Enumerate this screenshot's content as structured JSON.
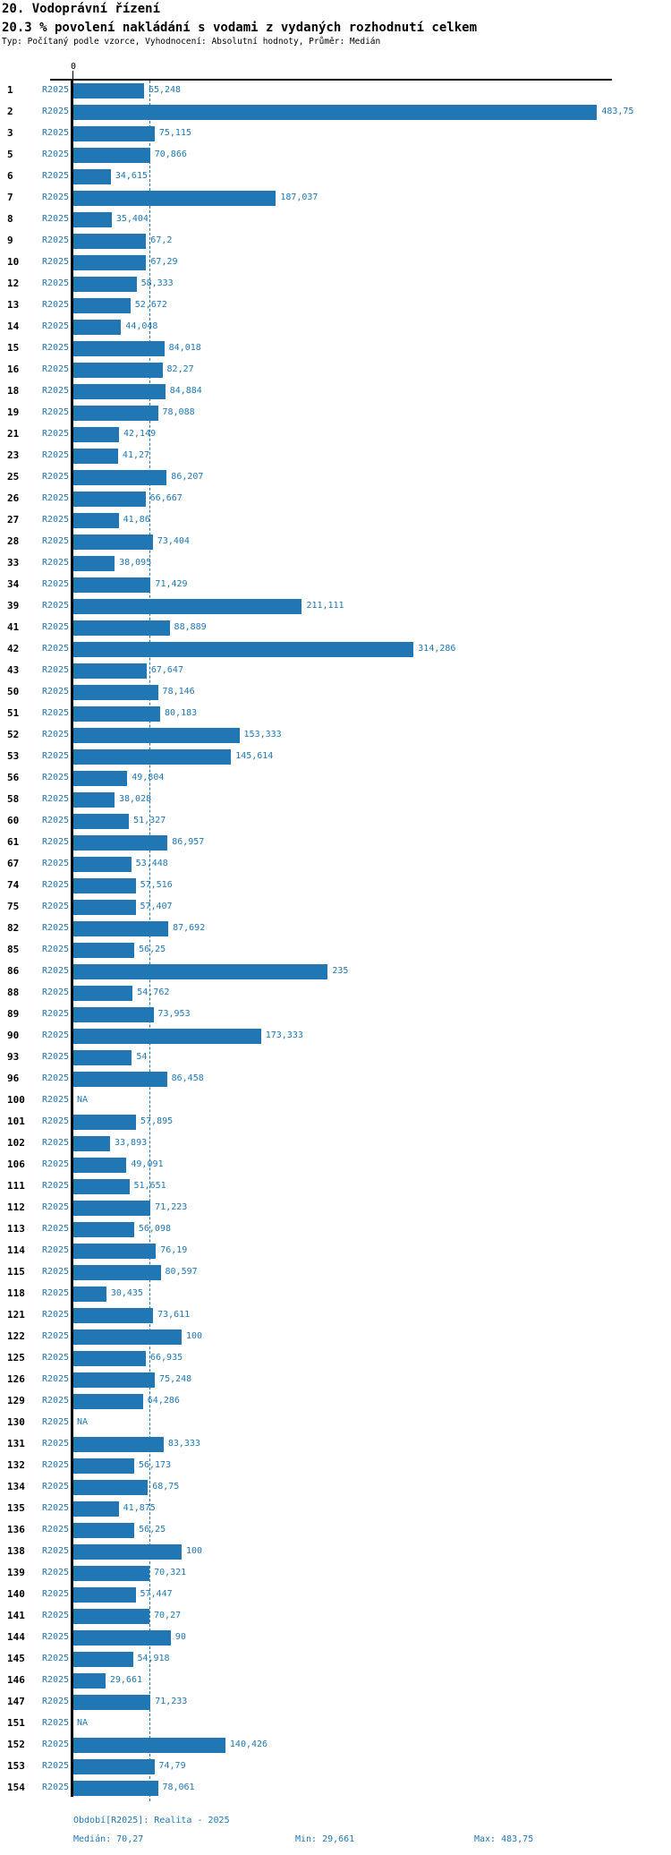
{
  "header": {
    "title": "20. Vodoprávní řízení",
    "subtitle": "20.3 % povolení nakládání s vodami z vydaných rozhodnutí celkem",
    "meta": "Typ: Počítaný podle vzorce, Vyhodnocení: Absolutní hodnoty, Průměr: Medián"
  },
  "axis": {
    "zero_label": "0"
  },
  "series_label": "R2025",
  "na_label": "NA",
  "colors": {
    "bar": "#2077b4",
    "value_text": "#2077b4",
    "axis": "#000000",
    "median_line": "#2077b4",
    "title_text": "#000000"
  },
  "footer": {
    "period": "Období[R2025]: Realita - 2025",
    "median": "Medián: 70,27",
    "min": "Min: 29,661",
    "max": "Max: 483,75"
  },
  "chart_data": {
    "type": "bar",
    "orientation": "horizontal",
    "title": "20. Vodoprávní řízení",
    "subtitle": "20.3 % povolení nakládání s vodami z vydaných rozhodnutí celkem",
    "xlabel": "",
    "ylabel": "",
    "xlim": [
      0,
      500
    ],
    "x_tick_labels": [
      "0"
    ],
    "grid": false,
    "legend_position": "none",
    "median_reference_line": 70.27,
    "stats": {
      "median": 70.27,
      "min": 29.661,
      "max": 483.75
    },
    "categories": [
      "1",
      "2",
      "3",
      "5",
      "6",
      "7",
      "8",
      "9",
      "10",
      "12",
      "13",
      "14",
      "15",
      "16",
      "18",
      "19",
      "21",
      "23",
      "25",
      "26",
      "27",
      "28",
      "33",
      "34",
      "39",
      "41",
      "42",
      "43",
      "50",
      "51",
      "52",
      "53",
      "56",
      "58",
      "60",
      "61",
      "67",
      "74",
      "75",
      "82",
      "85",
      "86",
      "88",
      "89",
      "90",
      "93",
      "96",
      "100",
      "101",
      "102",
      "106",
      "111",
      "112",
      "113",
      "114",
      "115",
      "118",
      "121",
      "122",
      "125",
      "126",
      "129",
      "130",
      "131",
      "132",
      "134",
      "135",
      "136",
      "138",
      "139",
      "140",
      "141",
      "144",
      "145",
      "146",
      "147",
      "151",
      "152",
      "153",
      "154"
    ],
    "series": [
      {
        "name": "R2025",
        "values": [
          65.248,
          483.75,
          75.115,
          70.866,
          34.615,
          187.037,
          35.404,
          67.2,
          67.29,
          58.333,
          52.672,
          44.048,
          84.018,
          82.27,
          84.884,
          78.088,
          42.149,
          41.27,
          86.207,
          66.667,
          41.86,
          73.404,
          38.095,
          71.429,
          211.111,
          88.889,
          314.286,
          67.647,
          78.146,
          80.183,
          153.333,
          145.614,
          49.804,
          38.028,
          51.327,
          86.957,
          53.448,
          57.516,
          57.407,
          87.692,
          56.25,
          235,
          54.762,
          73.953,
          173.333,
          54,
          86.458,
          null,
          57.895,
          33.893,
          49.091,
          51.651,
          71.223,
          56.098,
          76.19,
          80.597,
          30.435,
          73.611,
          100,
          66.935,
          75.248,
          64.286,
          null,
          83.333,
          56.173,
          68.75,
          41.875,
          56.25,
          100,
          70.321,
          57.447,
          70.27,
          90,
          54.918,
          29.661,
          71.233,
          null,
          140.426,
          74.79,
          78.061
        ],
        "value_labels": [
          "65,248",
          "483,75",
          "75,115",
          "70,866",
          "34,615",
          "187,037",
          "35,404",
          "67,2",
          "67,29",
          "58,333",
          "52,672",
          "44,048",
          "84,018",
          "82,27",
          "84,884",
          "78,088",
          "42,149",
          "41,27",
          "86,207",
          "66,667",
          "41,86",
          "73,404",
          "38,095",
          "71,429",
          "211,111",
          "88,889",
          "314,286",
          "67,647",
          "78,146",
          "80,183",
          "153,333",
          "145,614",
          "49,804",
          "38,028",
          "51,327",
          "86,957",
          "53,448",
          "57,516",
          "57,407",
          "87,692",
          "56,25",
          "235",
          "54,762",
          "73,953",
          "173,333",
          "54",
          "86,458",
          "NA",
          "57,895",
          "33,893",
          "49,091",
          "51,651",
          "71,223",
          "56,098",
          "76,19",
          "80,597",
          "30,435",
          "73,611",
          "100",
          "66,935",
          "75,248",
          "64,286",
          "NA",
          "83,333",
          "56,173",
          "68,75",
          "41,875",
          "56,25",
          "100",
          "70,321",
          "57,447",
          "70,27",
          "90",
          "54,918",
          "29,661",
          "71,233",
          "NA",
          "140,426",
          "74,79",
          "78,061"
        ]
      }
    ]
  }
}
